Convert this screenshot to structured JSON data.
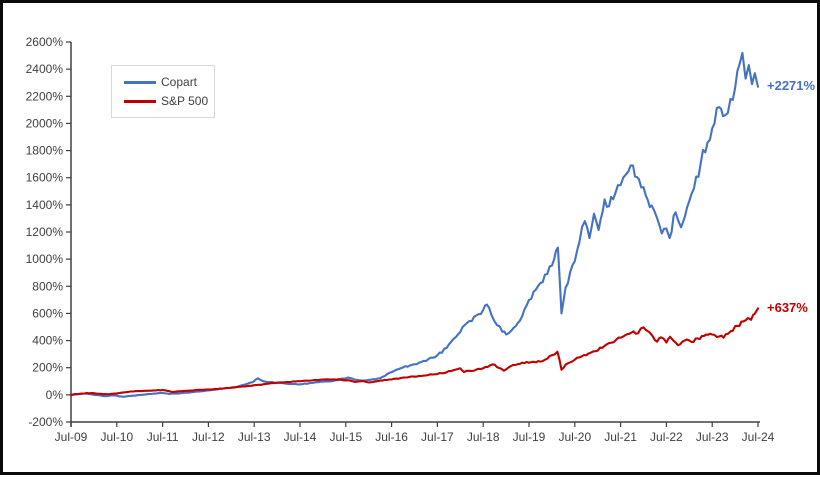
{
  "window": {
    "background": "#ffffff",
    "frame_border_color": "#0a0a0a",
    "axis_color": "#404040",
    "label_color": "#404040"
  },
  "legend": {
    "position": "top-left-inside",
    "items": [
      {
        "label": "Copart",
        "color": "#4472C4"
      },
      {
        "label": "S&P 500",
        "color": "#C00000"
      }
    ]
  },
  "annotations": {
    "copart_end_label": "+2271%",
    "sp500_end_label": "+637%"
  },
  "chart_data": {
    "type": "line",
    "title": "",
    "xlabel": "",
    "ylabel": "",
    "grid": false,
    "legend_position": "top-left-inside",
    "x_unit": "years since Jul-2009",
    "xlim": [
      0,
      15
    ],
    "ylim": [
      -200,
      2600
    ],
    "y_tick_step": 200,
    "y_ticks": [
      -200,
      0,
      200,
      400,
      600,
      800,
      1000,
      1200,
      1400,
      1600,
      1800,
      2000,
      2200,
      2400,
      2600
    ],
    "y_tick_suffix": "%",
    "x_tick_labels": [
      "Jul-09",
      "Jul-10",
      "Jul-11",
      "Jul-12",
      "Jul-13",
      "Jul-14",
      "Jul-15",
      "Jul-16",
      "Jul-17",
      "Jul-18",
      "Jul-19",
      "Jul-20",
      "Jul-21",
      "Jul-22",
      "Jul-23",
      "Jul-24"
    ],
    "series": [
      {
        "name": "Copart",
        "color": "#4472C4",
        "end_label": "+2271%",
        "final_value_pct": 2271,
        "points": [
          [
            0,
            0
          ],
          [
            0.15,
            6
          ],
          [
            0.3,
            10
          ],
          [
            0.45,
            4
          ],
          [
            0.6,
            -2
          ],
          [
            0.75,
            -10
          ],
          [
            0.9,
            -4
          ],
          [
            1.0,
            -6
          ],
          [
            1.15,
            -14
          ],
          [
            1.3,
            -8
          ],
          [
            1.5,
            -2
          ],
          [
            1.7,
            6
          ],
          [
            1.9,
            12
          ],
          [
            2.0,
            14
          ],
          [
            2.15,
            6
          ],
          [
            2.3,
            10
          ],
          [
            2.5,
            16
          ],
          [
            2.7,
            22
          ],
          [
            2.9,
            28
          ],
          [
            3.0,
            33
          ],
          [
            3.2,
            42
          ],
          [
            3.4,
            50
          ],
          [
            3.6,
            58
          ],
          [
            3.8,
            76
          ],
          [
            3.95,
            92
          ],
          [
            4.08,
            122
          ],
          [
            4.2,
            100
          ],
          [
            4.35,
            94
          ],
          [
            4.5,
            90
          ],
          [
            4.65,
            85
          ],
          [
            4.8,
            80
          ],
          [
            5.0,
            78
          ],
          [
            5.2,
            86
          ],
          [
            5.4,
            93
          ],
          [
            5.6,
            99
          ],
          [
            5.8,
            108
          ],
          [
            5.95,
            120
          ],
          [
            6.05,
            128
          ],
          [
            6.2,
            112
          ],
          [
            6.35,
            106
          ],
          [
            6.5,
            110
          ],
          [
            6.65,
            115
          ],
          [
            6.8,
            132
          ],
          [
            7.0,
            168
          ],
          [
            7.2,
            196
          ],
          [
            7.4,
            216
          ],
          [
            7.6,
            238
          ],
          [
            7.8,
            262
          ],
          [
            8.0,
            292
          ],
          [
            8.2,
            345
          ],
          [
            8.4,
            425
          ],
          [
            8.55,
            500
          ],
          [
            8.7,
            545
          ],
          [
            8.85,
            585
          ],
          [
            9.0,
            625
          ],
          [
            9.08,
            665
          ],
          [
            9.18,
            590
          ],
          [
            9.3,
            515
          ],
          [
            9.42,
            465
          ],
          [
            9.5,
            445
          ],
          [
            9.62,
            475
          ],
          [
            9.8,
            545
          ],
          [
            9.95,
            660
          ],
          [
            10.1,
            760
          ],
          [
            10.25,
            825
          ],
          [
            10.4,
            890
          ],
          [
            10.55,
            1000
          ],
          [
            10.63,
            1085
          ],
          [
            10.71,
            600
          ],
          [
            10.8,
            790
          ],
          [
            10.9,
            905
          ],
          [
            11.0,
            985
          ],
          [
            11.1,
            1125
          ],
          [
            11.22,
            1280
          ],
          [
            11.32,
            1155
          ],
          [
            11.42,
            1335
          ],
          [
            11.52,
            1215
          ],
          [
            11.65,
            1440
          ],
          [
            11.75,
            1390
          ],
          [
            11.88,
            1480
          ],
          [
            12.0,
            1545
          ],
          [
            12.12,
            1625
          ],
          [
            12.27,
            1690
          ],
          [
            12.4,
            1590
          ],
          [
            12.55,
            1470
          ],
          [
            12.68,
            1395
          ],
          [
            12.8,
            1300
          ],
          [
            12.9,
            1190
          ],
          [
            13.0,
            1225
          ],
          [
            13.07,
            1155
          ],
          [
            13.2,
            1345
          ],
          [
            13.32,
            1235
          ],
          [
            13.45,
            1380
          ],
          [
            13.6,
            1520
          ],
          [
            13.75,
            1710
          ],
          [
            13.9,
            1860
          ],
          [
            14.05,
            2000
          ],
          [
            14.15,
            2120
          ],
          [
            14.28,
            2060
          ],
          [
            14.4,
            2180
          ],
          [
            14.5,
            2260
          ],
          [
            14.6,
            2440
          ],
          [
            14.66,
            2520
          ],
          [
            14.73,
            2330
          ],
          [
            14.8,
            2430
          ],
          [
            14.87,
            2290
          ],
          [
            14.93,
            2370
          ],
          [
            15.0,
            2271
          ]
        ]
      },
      {
        "name": "S&P 500",
        "color": "#C00000",
        "end_label": "+637%",
        "final_value_pct": 637,
        "points": [
          [
            0,
            0
          ],
          [
            0.2,
            8
          ],
          [
            0.35,
            14
          ],
          [
            0.5,
            12
          ],
          [
            0.65,
            8
          ],
          [
            0.8,
            4
          ],
          [
            0.95,
            9
          ],
          [
            1.1,
            16
          ],
          [
            1.25,
            22
          ],
          [
            1.4,
            27
          ],
          [
            1.6,
            30
          ],
          [
            1.8,
            33
          ],
          [
            2.0,
            36
          ],
          [
            2.1,
            30
          ],
          [
            2.2,
            21
          ],
          [
            2.35,
            26
          ],
          [
            2.5,
            30
          ],
          [
            2.7,
            34
          ],
          [
            2.9,
            37
          ],
          [
            3.1,
            41
          ],
          [
            3.3,
            47
          ],
          [
            3.5,
            53
          ],
          [
            3.7,
            60
          ],
          [
            3.9,
            67
          ],
          [
            4.1,
            74
          ],
          [
            4.3,
            82
          ],
          [
            4.5,
            89
          ],
          [
            4.7,
            94
          ],
          [
            4.9,
            99
          ],
          [
            5.1,
            104
          ],
          [
            5.3,
            109
          ],
          [
            5.5,
            113
          ],
          [
            5.7,
            114
          ],
          [
            5.9,
            112
          ],
          [
            6.1,
            104
          ],
          [
            6.2,
            95
          ],
          [
            6.35,
            101
          ],
          [
            6.5,
            91
          ],
          [
            6.65,
            99
          ],
          [
            6.8,
            105
          ],
          [
            7.0,
            113
          ],
          [
            7.2,
            124
          ],
          [
            7.4,
            133
          ],
          [
            7.6,
            140
          ],
          [
            7.8,
            146
          ],
          [
            8.0,
            153
          ],
          [
            8.2,
            166
          ],
          [
            8.4,
            186
          ],
          [
            8.5,
            196
          ],
          [
            8.58,
            168
          ],
          [
            8.7,
            177
          ],
          [
            8.85,
            186
          ],
          [
            9.0,
            196
          ],
          [
            9.15,
            218
          ],
          [
            9.25,
            222
          ],
          [
            9.35,
            198
          ],
          [
            9.45,
            178
          ],
          [
            9.6,
            211
          ],
          [
            9.75,
            226
          ],
          [
            9.9,
            234
          ],
          [
            10.05,
            241
          ],
          [
            10.2,
            249
          ],
          [
            10.35,
            260
          ],
          [
            10.5,
            292
          ],
          [
            10.62,
            318
          ],
          [
            10.71,
            185
          ],
          [
            10.8,
            222
          ],
          [
            10.9,
            240
          ],
          [
            11.0,
            259
          ],
          [
            11.15,
            283
          ],
          [
            11.3,
            305
          ],
          [
            11.45,
            322
          ],
          [
            11.6,
            347
          ],
          [
            11.75,
            382
          ],
          [
            11.9,
            405
          ],
          [
            12.0,
            421
          ],
          [
            12.15,
            448
          ],
          [
            12.28,
            468
          ],
          [
            12.38,
            452
          ],
          [
            12.5,
            498
          ],
          [
            12.58,
            472
          ],
          [
            12.7,
            432
          ],
          [
            12.8,
            392
          ],
          [
            12.88,
            424
          ],
          [
            13.0,
            386
          ],
          [
            13.08,
            428
          ],
          [
            13.15,
            400
          ],
          [
            13.25,
            366
          ],
          [
            13.35,
            392
          ],
          [
            13.45,
            408
          ],
          [
            13.55,
            390
          ],
          [
            13.68,
            416
          ],
          [
            13.82,
            434
          ],
          [
            13.95,
            450
          ],
          [
            14.05,
            442
          ],
          [
            14.15,
            430
          ],
          [
            14.25,
            421
          ],
          [
            14.4,
            468
          ],
          [
            14.55,
            509
          ],
          [
            14.68,
            541
          ],
          [
            14.78,
            566
          ],
          [
            14.85,
            553
          ],
          [
            14.93,
            598
          ],
          [
            15.0,
            637
          ]
        ]
      }
    ]
  }
}
